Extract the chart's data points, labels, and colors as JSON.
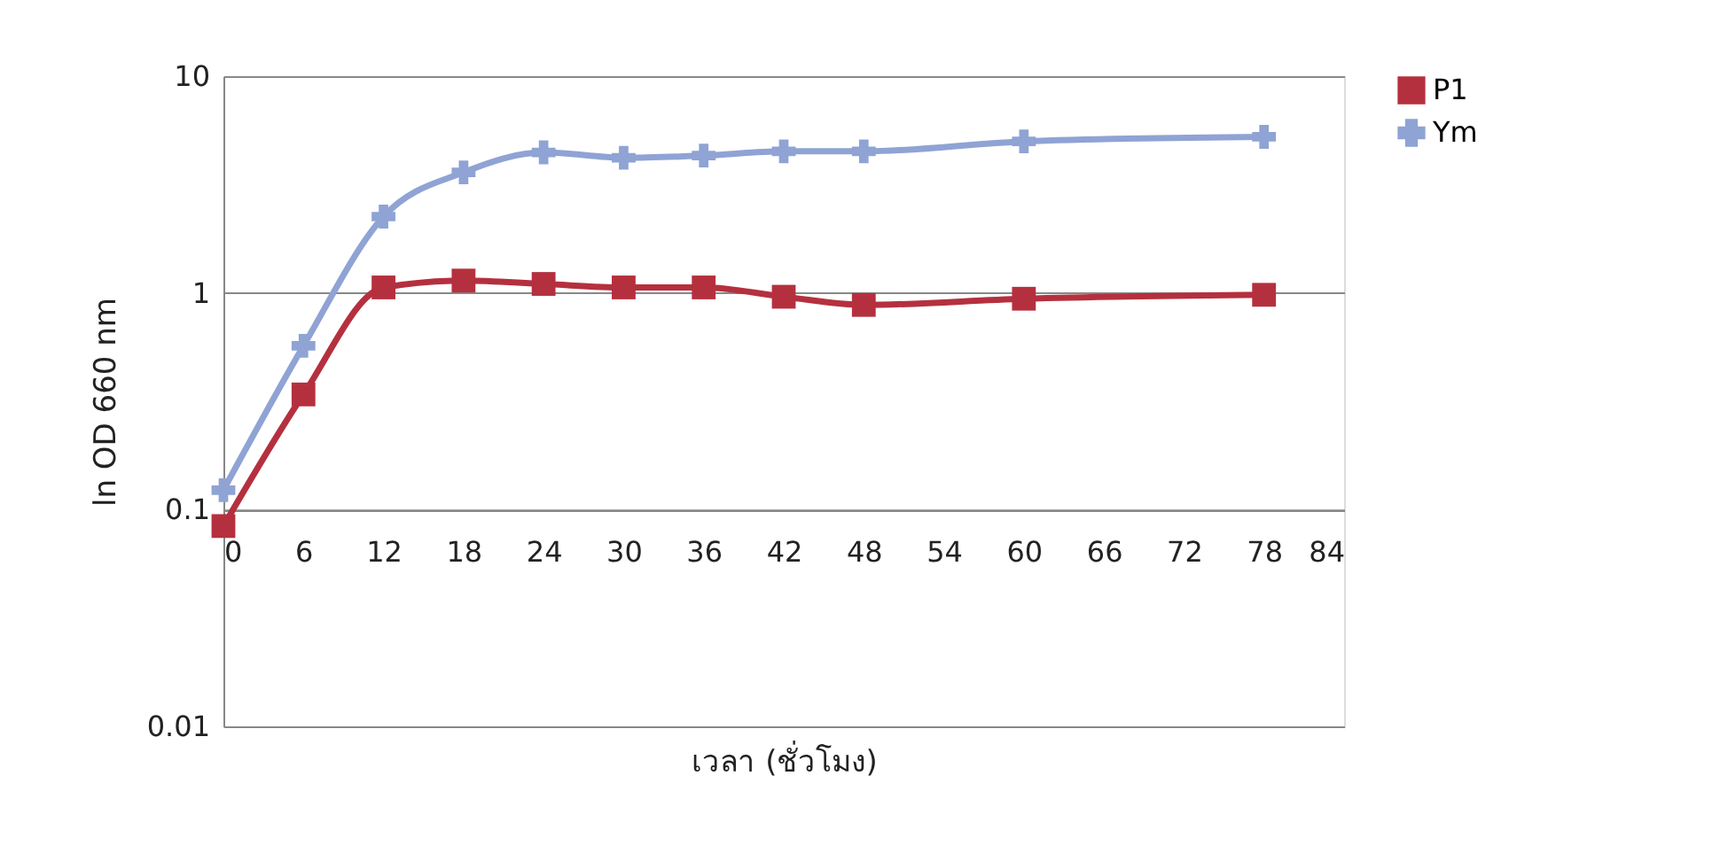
{
  "chart_data": {
    "type": "line",
    "xlabel": "เวลา (ชั่วโมง)",
    "ylabel": "ln OD 660 nm",
    "x": [
      0,
      6,
      12,
      18,
      24,
      30,
      36,
      42,
      48,
      60,
      78
    ],
    "series": [
      {
        "name": "P1",
        "color": "#b5303f",
        "marker": "square",
        "values": [
          0.084,
          0.34,
          1.06,
          1.14,
          1.1,
          1.06,
          1.06,
          0.96,
          0.88,
          0.94,
          0.98
        ]
      },
      {
        "name": "Ym",
        "color": "#8fa3d4",
        "marker": "cross",
        "values": [
          0.123,
          0.57,
          2.25,
          3.6,
          4.45,
          4.2,
          4.3,
          4.5,
          4.5,
          5.0,
          5.25
        ]
      }
    ],
    "log": "y",
    "xlim": [
      0,
      84
    ],
    "xticks": [
      0,
      6,
      12,
      18,
      24,
      30,
      36,
      42,
      48,
      54,
      60,
      66,
      72,
      78,
      84
    ],
    "ylim": [
      0.01,
      10
    ],
    "yticks": [
      0.01,
      0.1,
      1,
      10
    ],
    "grid": "y",
    "legend": "right",
    "line_style": "solid"
  }
}
